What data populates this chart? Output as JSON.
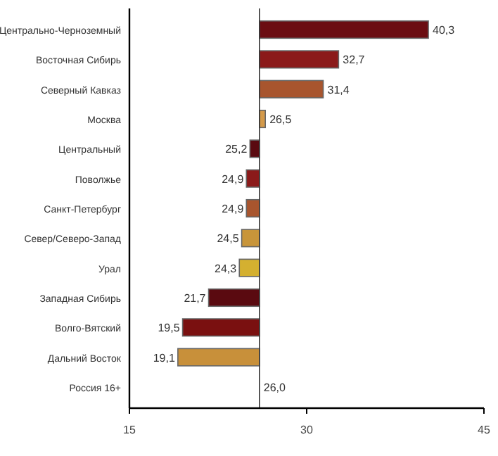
{
  "chart_data": {
    "type": "bar",
    "orientation": "horizontal",
    "categories": [
      "Центрально-Черноземный",
      "Восточная Сибирь",
      "Северный Кавказ",
      "Москва",
      "Центральный",
      "Поволжье",
      "Санкт-Петербург",
      "Север/Северо-Запад",
      "Урал",
      "Западная Сибирь",
      "Волго-Вятский",
      "Дальний Восток",
      "Россия 16+"
    ],
    "base": [
      26,
      26,
      26,
      26,
      26,
      26,
      26,
      26,
      26,
      26,
      26,
      26,
      null
    ],
    "values": [
      14.3,
      6.7,
      5.4,
      0.5,
      -0.8,
      -1.1,
      -1.1,
      -1.5,
      -1.7,
      -4.3,
      -6.5,
      -6.9,
      null
    ],
    "value_labels": [
      "40,3",
      "32,7",
      "31,4",
      "26,5",
      "25,2",
      "24,9",
      "24,9",
      "24,5",
      "24,3",
      "21,7",
      "19,5",
      "19,1",
      null
    ],
    "colors": [
      "#6b0d12",
      "#8b1a1a",
      "#a8552e",
      "#d49a4a",
      "#5a0a10",
      "#8b1a1a",
      "#a8552e",
      "#c8953a",
      "#d4b030",
      "#5a0a10",
      "#7a1010",
      "#c8903a",
      null
    ],
    "ref_lines": [
      {
        "axis": "x",
        "value": 26,
        "label": "26,0",
        "color": "#333333"
      }
    ],
    "xlim": [
      15,
      45
    ],
    "xticks": [
      15,
      30,
      45
    ]
  }
}
